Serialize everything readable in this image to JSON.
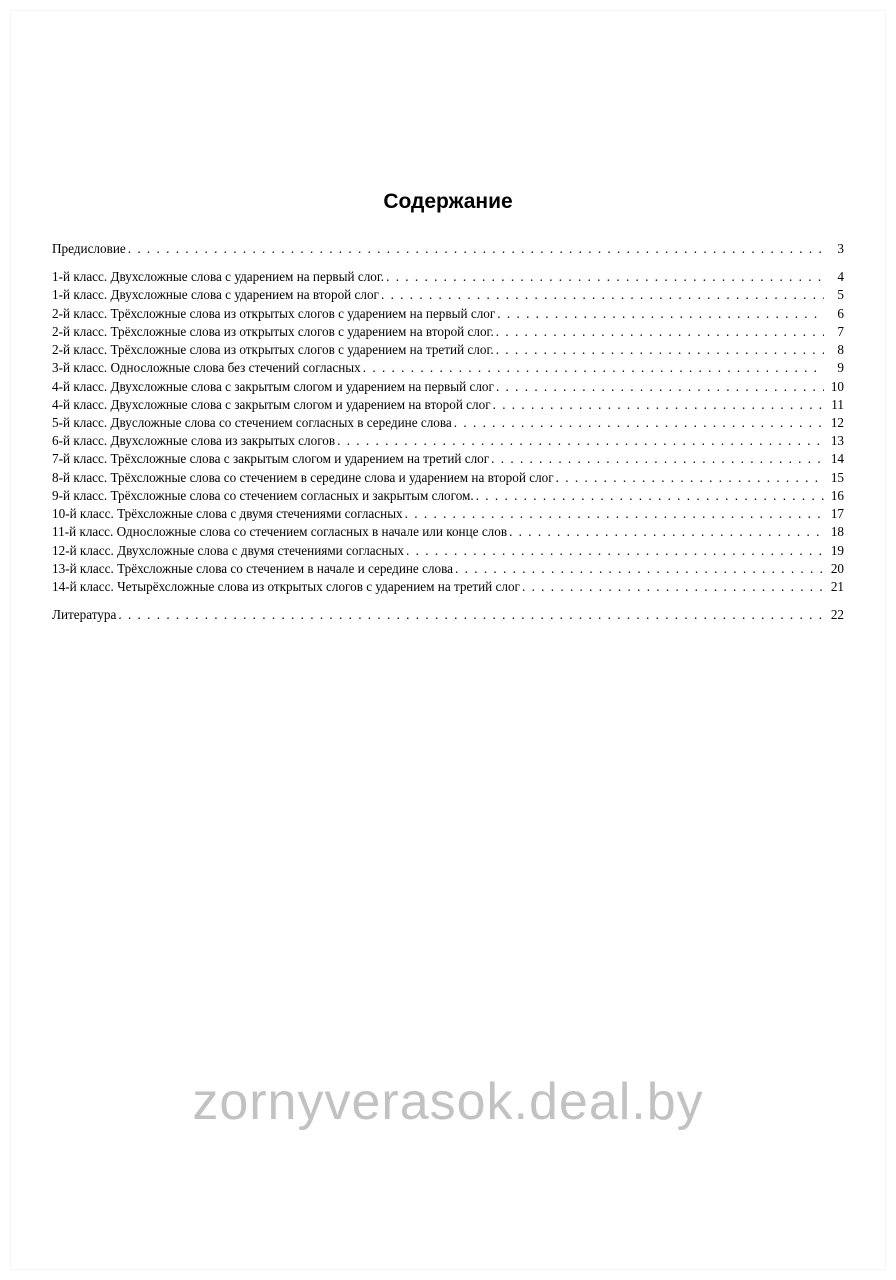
{
  "title": "Содержание",
  "watermark": "zornyverasok.deal.by",
  "toc": {
    "groups": [
      {
        "rows": [
          {
            "label": "Предисловие",
            "page": "3"
          }
        ]
      },
      {
        "rows": [
          {
            "label": "1-й класс. Двухсложные слова с ударением на первый слог.",
            "page": "4"
          },
          {
            "label": "1-й класс. Двухсложные слова с ударением на второй слог",
            "page": "5"
          },
          {
            "label": "2-й класс. Трёхсложные слова из открытых слогов с ударением на первый слог",
            "page": "6"
          },
          {
            "label": "2-й класс. Трёхсложные слова из открытых слогов с ударением на второй слог.",
            "page": "7"
          },
          {
            "label": "2-й класс. Трёхсложные слова из открытых слогов с ударением на третий слог.",
            "page": "8"
          },
          {
            "label": "3-й класс. Односложные слова без стечений согласных",
            "page": "9"
          },
          {
            "label": "4-й класс. Двухсложные слова с закрытым слогом и ударением на первый слог",
            "page": "10"
          },
          {
            "label": "4-й класс. Двухсложные слова с закрытым слогом и ударением на второй слог",
            "page": "11"
          },
          {
            "label": "5-й класс. Двусложные слова со стечением согласных в середине слова",
            "page": "12"
          },
          {
            "label": "6-й класс. Двухсложные слова из закрытых слогов",
            "page": "13"
          },
          {
            "label": "7-й класс. Трёхсложные слова с закрытым слогом и ударением на третий слог",
            "page": "14"
          },
          {
            "label": "8-й класс. Трёхсложные слова со стечением в середине слова и ударением на второй слог",
            "page": "15"
          },
          {
            "label": "9-й класс. Трёхсложные слова со стечением согласных и закрытым слогом.",
            "page": "16"
          },
          {
            "label": "10-й класс. Трёхсложные слова с двумя стечениями согласных",
            "page": "17"
          },
          {
            "label": "11-й класс. Односложные слова со стечением согласных в начале или конце слов",
            "page": "18"
          },
          {
            "label": "12-й класс. Двухсложные слова с двумя стечениями согласных",
            "page": "19"
          },
          {
            "label": "13-й класс. Трёхсложные слова со стечением в начале и середине слова",
            "page": "20"
          },
          {
            "label": "14-й класс. Четырёхсложные слова из открытых слогов с ударением на третий слог",
            "page": "21"
          }
        ]
      },
      {
        "rows": [
          {
            "label": "Литература",
            "page": "22"
          }
        ]
      }
    ]
  },
  "colors": {
    "text": "#000000",
    "background": "#ffffff",
    "watermark": "rgba(120,120,120,0.45)"
  },
  "typography": {
    "title_fontsize_pt": 16,
    "body_fontsize_pt": 10,
    "watermark_fontsize_pt": 39,
    "title_font": "Arial Bold",
    "body_font": "Times New Roman"
  }
}
